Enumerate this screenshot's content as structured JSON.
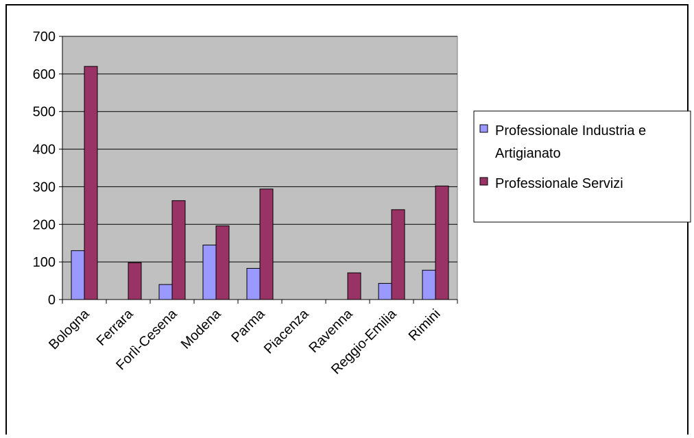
{
  "chart_data": {
    "type": "bar",
    "title": "",
    "xlabel": "",
    "ylabel": "",
    "ylim": [
      0,
      700
    ],
    "yticks": [
      0,
      100,
      200,
      300,
      400,
      500,
      600,
      700
    ],
    "grid": true,
    "legend_position": "right",
    "categories": [
      "Bologna",
      "Ferrara",
      "Forlì-Cesena",
      "Modena",
      "Parma",
      "Piacenza",
      "Ravenna",
      "Reggio-Emilia",
      "Rimini"
    ],
    "series": [
      {
        "name": "Professionale Industria e Artigianato",
        "legend_lines": [
          "Professionale Industria e",
          "Artigianato"
        ],
        "color": "#9999ff",
        "values": [
          130,
          0,
          40,
          145,
          83,
          0,
          0,
          43,
          78
        ]
      },
      {
        "name": "Professionale Servizi",
        "legend_lines": [
          "Professionale Servizi"
        ],
        "color": "#993366",
        "values": [
          620,
          98,
          263,
          196,
          294,
          0,
          71,
          239,
          302
        ]
      }
    ],
    "plot_background": "#c0c0c0",
    "border_color": "#000000"
  }
}
